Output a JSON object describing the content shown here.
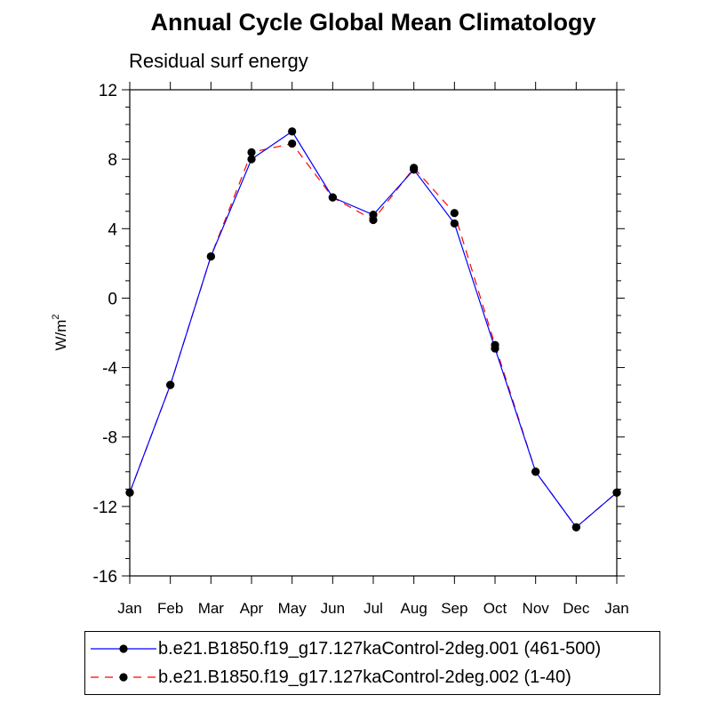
{
  "title": "Annual Cycle Global Mean Climatology",
  "subtitle": "Residual surf energy",
  "chart_data": {
    "type": "line",
    "title": "Annual Cycle Global Mean Climatology",
    "subtitle": "Residual surf energy",
    "xlabel": "",
    "ylabel": "W/m²",
    "ylabel_base": "W/m",
    "ylabel_sup": "2",
    "categories": [
      "Jan",
      "Feb",
      "Mar",
      "Apr",
      "May",
      "Jun",
      "Jul",
      "Aug",
      "Sep",
      "Oct",
      "Nov",
      "Dec",
      "Jan"
    ],
    "ylim": [
      -16,
      12
    ],
    "yticks": [
      -16,
      -12,
      -8,
      -4,
      0,
      4,
      8,
      12
    ],
    "ytick_labels": [
      "-16",
      "-12",
      "-8",
      "-4",
      "0",
      "4",
      "8",
      "12"
    ],
    "series": [
      {
        "name": "b.e21.B1850.f19_g17.127kaControl-2deg.001 (461-500)",
        "color": "#0000ff",
        "dash": "solid",
        "values": [
          -11.2,
          -5.0,
          2.4,
          8.0,
          9.6,
          5.8,
          4.8,
          7.4,
          4.3,
          -2.9,
          -10.0,
          -13.2,
          -11.2
        ]
      },
      {
        "name": "b.e21.B1850.f19_g17.127kaControl-2deg.002 (1-40)",
        "color": "#ff0000",
        "dash": "dashed",
        "values": [
          -11.2,
          -5.0,
          2.4,
          8.4,
          8.9,
          5.8,
          4.5,
          7.5,
          4.9,
          -2.7,
          -10.0,
          -13.2,
          -11.2
        ]
      }
    ],
    "legend_position": "bottom"
  }
}
